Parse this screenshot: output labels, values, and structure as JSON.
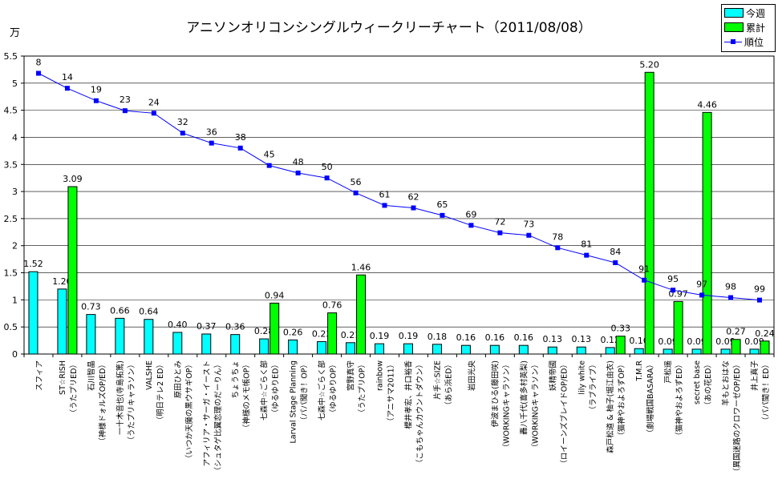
{
  "title": "アニソンオリコンシングルウィークリーチャート（2011/08/08）",
  "unit": "万",
  "legend": {
    "weekly": "今週",
    "cumulative": "累計",
    "rank": "順位"
  },
  "colors": {
    "weekly": "#00ffff",
    "cumulative": "#00ff00",
    "rank": "#0000ff"
  },
  "chart_data": {
    "type": "bar",
    "ylim": [
      0,
      5.5
    ],
    "yticks": [
      "0",
      "0.5",
      "1",
      "1.5",
      "2",
      "2.5",
      "3",
      "3.5",
      "4",
      "4.5",
      "5",
      "5.5"
    ],
    "grid": true,
    "legend_position": "top-right",
    "categories": [
      [
        "スフィア"
      ],
      [
        "ST☆RISH",
        "（うたプリED）"
      ],
      [
        "石川智晶",
        "（神様ドォルズOP/ED）"
      ],
      [
        "一十木音也(寺島拓篤)",
        "（うたプリキャラソン）"
      ],
      [
        "VALSHE",
        "（明日テレ2 ED）"
      ],
      [
        "原田ひとみ",
        "（いつか天魔の黒ウサギOP）"
      ],
      [
        "アフィリア・サーガ・イースト",
        "（シュタゲ比翼恋理のだーりん）"
      ],
      [
        "ちょうちょ",
        "（神様のメモ帳OP）"
      ],
      [
        "七森中☆ごらく部",
        "（ゆるゆりED）"
      ],
      [
        "Larval Stage Planning",
        "（パパ聞き！OP）"
      ],
      [
        "七森中☆ごらく部",
        "（ゆるゆりOP）"
      ],
      [
        "宮野真守",
        "（うたプリOP）"
      ],
      [
        "rainbow",
        "（アニサマ2011）"
      ],
      [
        "櫻井孝宏、井口裕香",
        "（こもちゃんカウントダウン）"
      ],
      [
        "片手☆SIZE",
        "（あら浜ED）"
      ],
      [
        "岩田光央"
      ],
      [
        "伊波まひる(藤田咲)",
        "（WORKINGキャラソン）"
      ],
      [
        "轟八千代(喜多村英梨)",
        "（WORKINGキャラソン）"
      ],
      [
        "妖精帝國",
        "（ロイーンズブレイドOP/ED）"
      ],
      [
        "lily white",
        "（ラブライブ）"
      ],
      [
        "森戸松道 & 柚子(堀江由衣)",
        "（猫神やおよろずOP）"
      ],
      [
        "T.M.R",
        "（劇場戦国BASARA）"
      ],
      [
        "戸松遥",
        "（猫神やおよろずED）"
      ],
      [
        "secret base",
        "（あの花ED）"
      ],
      [
        "羊もとおはな",
        "（異国迷路のクロワーゼOP/ED）"
      ],
      [
        "井上真子",
        "（パパ聞き！ED）"
      ]
    ],
    "series": [
      {
        "name": "今週",
        "type": "bar",
        "values": [
          1.52,
          1.2,
          0.73,
          0.66,
          0.64,
          0.4,
          0.37,
          0.36,
          0.28,
          0.26,
          0.23,
          0.21,
          0.19,
          0.19,
          0.18,
          0.16,
          0.16,
          0.16,
          0.13,
          0.13,
          0.12,
          0.1,
          0.09,
          0.09,
          0.09,
          0.09
        ]
      },
      {
        "name": "累計",
        "type": "bar",
        "values": [
          null,
          3.09,
          null,
          null,
          null,
          null,
          null,
          null,
          0.94,
          null,
          0.76,
          1.46,
          null,
          null,
          null,
          null,
          null,
          null,
          null,
          null,
          0.33,
          5.2,
          0.97,
          4.46,
          0.27,
          0.24
        ]
      },
      {
        "name": "順位",
        "type": "line",
        "values": [
          8,
          14,
          19,
          23,
          24,
          32,
          36,
          38,
          45,
          48,
          50,
          56,
          61,
          62,
          65,
          69,
          72,
          73,
          78,
          81,
          84,
          91,
          95,
          97,
          98,
          99
        ]
      }
    ],
    "weekly_labels": [
      "1.52",
      "1.20",
      "0.73",
      "0.66",
      "0.64",
      "0.40",
      "0.37",
      "0.36",
      "0.28",
      "0.26",
      "0.23",
      "0.21",
      "0.19",
      "0.19",
      "0.18",
      "0.16",
      "0.16",
      "0.16",
      "0.13",
      "0.13",
      "0.12",
      "0.10",
      "0.09",
      "0.09",
      "0.09",
      "0.09"
    ],
    "cumulative_labels": [
      "",
      "3.09",
      "",
      "",
      "",
      "",
      "",
      "",
      "0.94",
      "",
      "0.76",
      "1.46",
      "",
      "",
      "",
      "",
      "",
      "",
      "",
      "",
      "0.33",
      "5.20",
      "0.97",
      "4.46",
      "0.27",
      "0.24"
    ]
  }
}
